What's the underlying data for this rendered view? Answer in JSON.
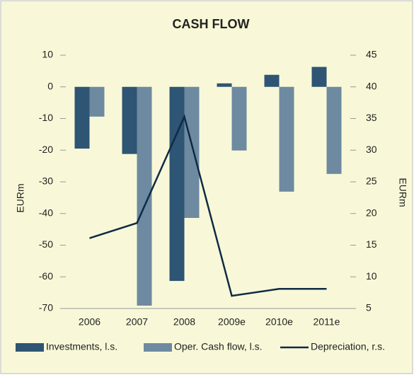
{
  "chart_data": {
    "type": "bar",
    "title": "CASH FLOW",
    "categories": [
      "2006",
      "2007",
      "2008",
      "2009e",
      "2010e",
      "2011e"
    ],
    "series": [
      {
        "name": "Investments, l.s.",
        "color": "#2e5573",
        "values": [
          -19.5,
          -21.2,
          -61.3,
          1.1,
          3.8,
          6.3
        ]
      },
      {
        "name": "Oper. Cash flow, l.s.",
        "color": "#6e8aa0",
        "values": [
          -9.4,
          -69.1,
          -41.4,
          -20.1,
          -33.1,
          -27.5
        ]
      },
      {
        "name": "Depreciation, r.s.",
        "color": "#0e2b46",
        "type": "line",
        "axis": "y2",
        "values": [
          16.1,
          18.5,
          35.3,
          7.0,
          8.1,
          8.1
        ]
      }
    ],
    "ylabel": "EURm",
    "y2label": "EURm",
    "ylim": [
      -70,
      10
    ],
    "yticks": [
      10,
      0,
      -10,
      -20,
      -30,
      -40,
      -50,
      -60,
      -70
    ],
    "y2lim": [
      5,
      45
    ],
    "y2ticks": [
      45,
      40,
      35,
      30,
      25,
      20,
      15,
      10,
      5
    ],
    "grid": false,
    "legend": "bottom"
  }
}
